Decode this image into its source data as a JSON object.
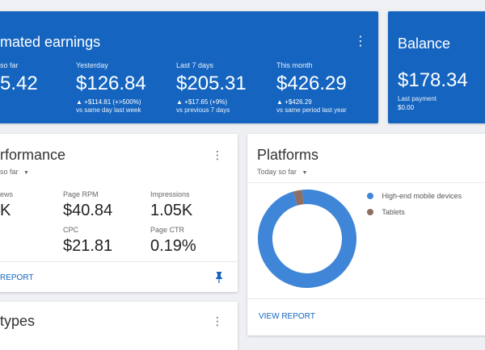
{
  "earnings": {
    "title": "mated earnings",
    "menu_glyph": "⋮",
    "stats": [
      {
        "label": "so far",
        "value": "5.42",
        "change": "",
        "compare": ""
      },
      {
        "label": "Yesterday",
        "value": "$126.84",
        "change": "▲ +$114.81 (+>500%)",
        "compare": "vs same day last week"
      },
      {
        "label": "Last 7 days",
        "value": "$205.31",
        "change": "▲ +$17.65 (+9%)",
        "compare": "vs previous 7 days"
      },
      {
        "label": "This month",
        "value": "$426.29",
        "change": "▲ +$426.29",
        "compare": "vs same period last year"
      }
    ]
  },
  "balance": {
    "title": "Balance",
    "value": "$178.34",
    "last_payment_label": "Last payment",
    "last_payment_value": "$0.00"
  },
  "performance": {
    "title": "rformance",
    "range": "so far",
    "menu_glyph": "⋮",
    "metrics": [
      {
        "label": "ews",
        "value": "K"
      },
      {
        "label": "Page RPM",
        "value": "$40.84"
      },
      {
        "label": "Impressions",
        "value": "1.05K"
      },
      {
        "label": "CPC",
        "value": "$21.81"
      },
      {
        "label": "Page CTR",
        "value": "0.19%"
      }
    ],
    "report_label": "REPORT",
    "pin_icon": "pin-icon"
  },
  "platforms": {
    "title": "Platforms",
    "range": "Today so far",
    "legend": [
      {
        "label": "High-end mobile devices",
        "color": "#3f86d8"
      },
      {
        "label": "Tablets",
        "color": "#8d6e63"
      }
    ],
    "chart_data": {
      "type": "pie",
      "categories": [
        "High-end mobile devices",
        "Tablets"
      ],
      "values": [
        97,
        3
      ]
    },
    "report_label": "VIEW REPORT"
  },
  "types": {
    "title": "types",
    "menu_glyph": "⋮"
  },
  "colors": {
    "primary": "#1565c0",
    "series_main": "#3f86d8",
    "series_secondary": "#8d6e63"
  }
}
